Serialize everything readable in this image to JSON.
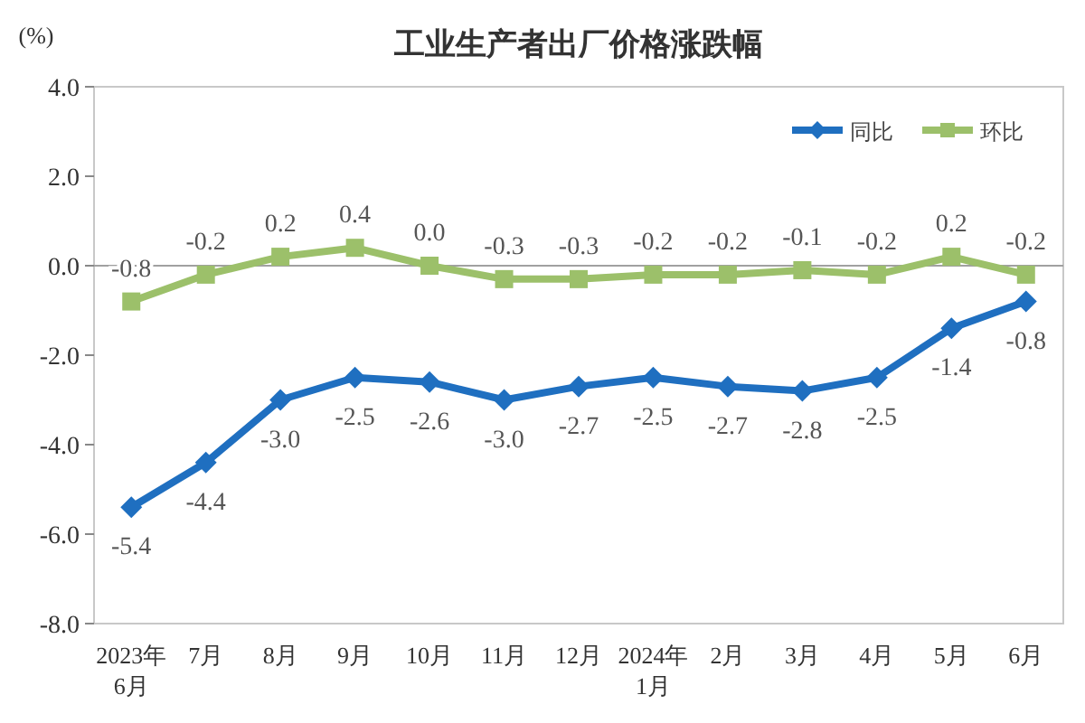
{
  "chart_data": {
    "type": "line",
    "title": "工业生产者出厂价格涨跌幅",
    "ylabel": "(%)",
    "categories": [
      "2023年\n6月",
      "7月",
      "8月",
      "9月",
      "10月",
      "11月",
      "12月",
      "2024年\n1月",
      "2月",
      "3月",
      "4月",
      "5月",
      "6月"
    ],
    "ylim": [
      -8,
      4
    ],
    "yticks": [
      {
        "value": 4,
        "label": "4.0"
      },
      {
        "value": 2,
        "label": "2.0"
      },
      {
        "value": 0,
        "label": "0.0"
      },
      {
        "value": -2,
        "label": "-2.0"
      },
      {
        "value": -4,
        "label": "-4.0"
      },
      {
        "value": -6,
        "label": "-6.0"
      },
      {
        "value": -8,
        "label": "-8.0"
      }
    ],
    "grid": false,
    "legend": "top right",
    "line_style": "solid",
    "ref_lines": [
      {
        "axis": "y",
        "value": 0,
        "color": "#a0a0a0"
      }
    ],
    "series": [
      {
        "name": "同比",
        "color": "#1f6fc0",
        "marker": "diamond",
        "values": [
          -5.4,
          -4.4,
          -3.0,
          -2.5,
          -2.6,
          -3.0,
          -2.7,
          -2.5,
          -2.7,
          -2.8,
          -2.5,
          -1.4,
          -0.8
        ],
        "value_labels": [
          "-5.4",
          "-4.4",
          "-3.0",
          "-2.5",
          "-2.6",
          "-3.0",
          "-2.7",
          "-2.5",
          "-2.7",
          "-2.8",
          "-2.5",
          "-1.4",
          "-0.8"
        ]
      },
      {
        "name": "环比",
        "color": "#9cc06a",
        "marker": "square",
        "values": [
          -0.8,
          -0.2,
          0.2,
          0.4,
          0.0,
          -0.3,
          -0.3,
          -0.2,
          -0.2,
          -0.1,
          -0.2,
          0.2,
          -0.2
        ],
        "value_labels": [
          "-0.8",
          "-0.2",
          "0.2",
          "0.4",
          "0.0",
          "-0.3",
          "-0.3",
          "-0.2",
          "-0.2",
          "-0.1",
          "-0.2",
          "0.2",
          "-0.2"
        ]
      }
    ]
  }
}
